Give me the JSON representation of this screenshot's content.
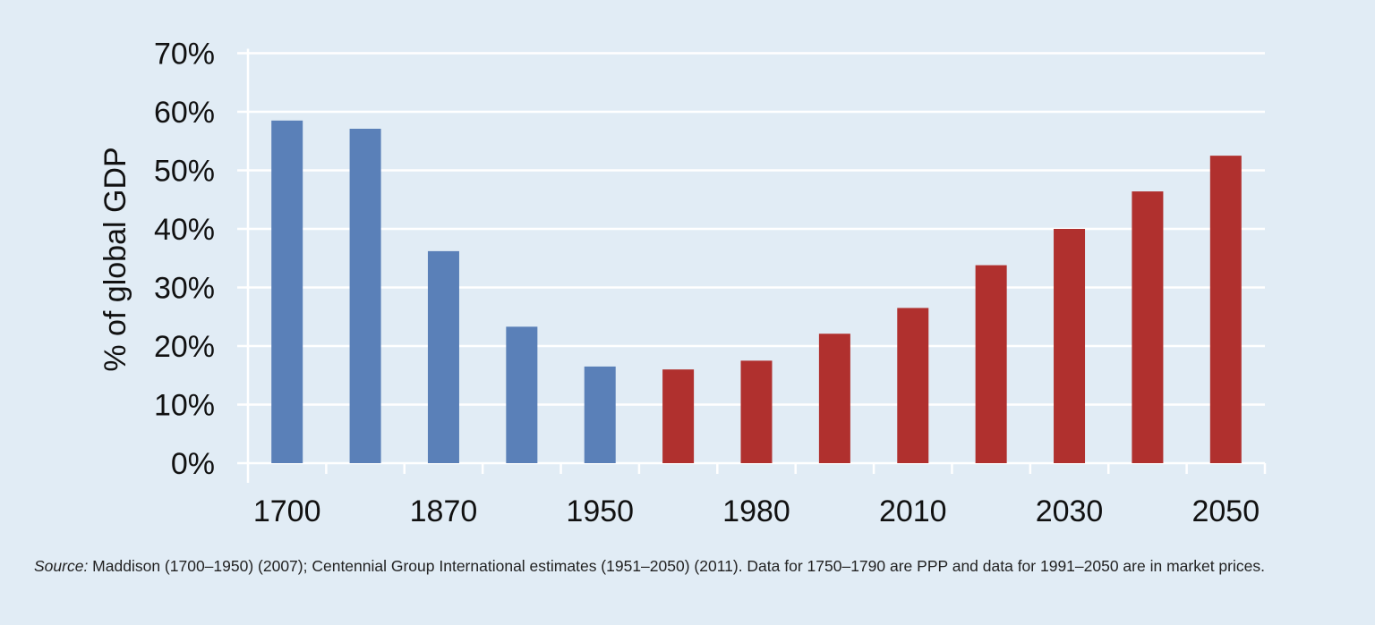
{
  "chart_data": {
    "type": "bar",
    "title": "",
    "xlabel": "",
    "ylabel": "% of global GDP",
    "ylim": [
      0,
      70
    ],
    "yticks": [
      "0%",
      "10%",
      "20%",
      "30%",
      "40%",
      "50%",
      "60%",
      "70%"
    ],
    "grid": true,
    "categories": [
      "1700",
      "",
      "1870",
      "",
      "1950",
      "",
      "1980",
      "",
      "2010",
      "",
      "2030",
      "",
      "2050"
    ],
    "values": [
      58.5,
      57.1,
      36.2,
      23.3,
      16.5,
      16.0,
      17.5,
      22.1,
      26.5,
      33.8,
      40.0,
      46.4,
      52.5
    ],
    "bar_colors": [
      "#5a80b8",
      "#5a80b8",
      "#5a80b8",
      "#5a80b8",
      "#5a80b8",
      "#b0302e",
      "#b0302e",
      "#b0302e",
      "#b0302e",
      "#b0302e",
      "#b0302e",
      "#b0302e",
      "#b0302e"
    ],
    "colors": {
      "historical": "#5a80b8",
      "estimate": "#b0302e",
      "background": "#e1ecf5",
      "grid": "#ffffff"
    }
  },
  "source": {
    "label": "Source:",
    "text": " Maddison (1700–1950) (2007); Centennial Group International estimates (1951–2050) (2011). Data for 1750–1790 are PPP and data for 1991–2050 are in market prices."
  }
}
